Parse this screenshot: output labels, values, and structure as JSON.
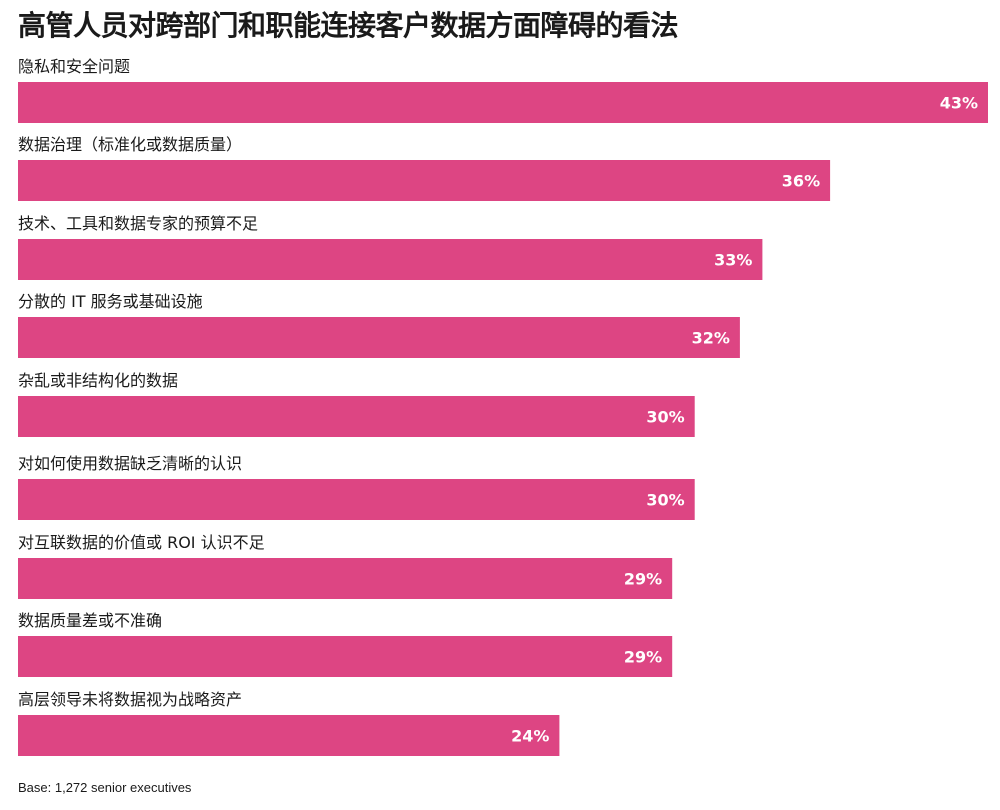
{
  "chart_data": {
    "type": "bar",
    "orientation": "horizontal",
    "title": "高管人员对跨部门和职能连接客户数据方面障碍的看法",
    "categories": [
      "隐私和安全问题",
      "数据治理（标准化或数据质量）",
      "技术、工具和数据专家的预算不足",
      "分散的 IT 服务或基础设施",
      "杂乱或非结构化的数据",
      "对如何使用数据缺乏清晰的认识",
      "对互联数据的价值或 ROI 认识不足",
      "数据质量差或不准确",
      "高层领导未将数据视为战略资产"
    ],
    "values": [
      43,
      36,
      33,
      32,
      30,
      30,
      29,
      29,
      24
    ],
    "value_labels": [
      "43%",
      "36%",
      "33%",
      "32%",
      "30%",
      "30%",
      "29%",
      "29%",
      "24%"
    ],
    "bar_color": "#dd4583",
    "value_label_color": "#ffffff"
  },
  "footnote": "Base: 1,272 senior executives"
}
